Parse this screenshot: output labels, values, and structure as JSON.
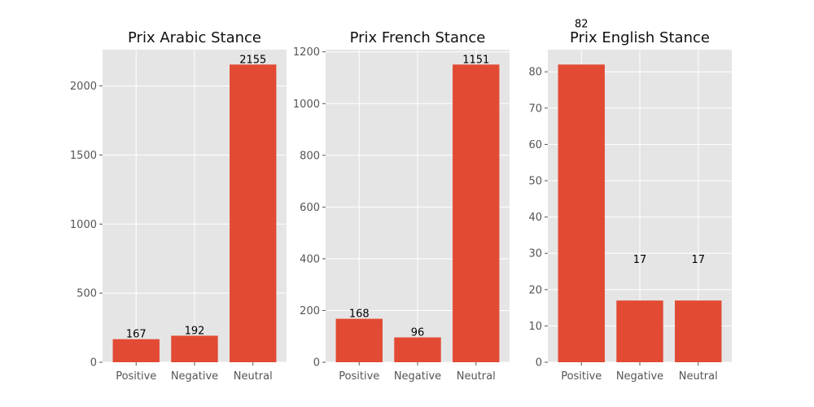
{
  "colors": {
    "bar": "#E24A33",
    "panel_bg": "#E5E5E5",
    "grid": "#FFFFFF",
    "tick_text": "#555555",
    "title_text": "#111111"
  },
  "chart_data": [
    {
      "type": "bar",
      "title": "Prix Arabic Stance",
      "categories": [
        "Positive",
        "Negative",
        "Neutral"
      ],
      "values": [
        167,
        192,
        2155
      ],
      "data_labels": [
        "167",
        "192",
        "2155"
      ],
      "yticks": [
        0,
        500,
        1000,
        1500,
        2000
      ],
      "ylim": [
        0,
        2262.75
      ],
      "xlabel": "",
      "ylabel": "",
      "grid": true
    },
    {
      "type": "bar",
      "title": "Prix French Stance",
      "categories": [
        "Positive",
        "Negative",
        "Neutral"
      ],
      "values": [
        168,
        96,
        1151
      ],
      "data_labels": [
        "168",
        "96",
        "1151"
      ],
      "yticks": [
        0,
        200,
        400,
        600,
        800,
        1000,
        1200
      ],
      "ylim": [
        0,
        1208.55
      ],
      "xlabel": "",
      "ylabel": "",
      "grid": true
    },
    {
      "type": "bar",
      "title": "Prix English Stance",
      "categories": [
        "Positive",
        "Negative",
        "Neutral"
      ],
      "values": [
        82,
        17,
        17
      ],
      "data_labels": [
        "82",
        "17",
        "17"
      ],
      "yticks": [
        0,
        10,
        20,
        30,
        40,
        50,
        60,
        70,
        80
      ],
      "ylim": [
        0,
        86.1
      ],
      "xlabel": "",
      "ylabel": "",
      "grid": true
    }
  ]
}
